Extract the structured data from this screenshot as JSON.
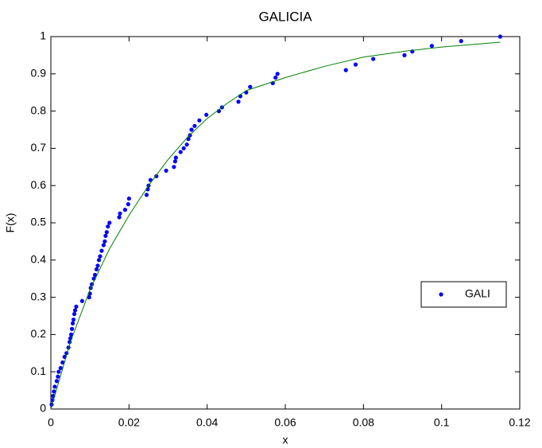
{
  "chart_data": {
    "type": "scatter",
    "title": "GALICIA",
    "x_label": "x",
    "y_label": "F(x)",
    "xlim": [
      0,
      0.12
    ],
    "ylim": [
      0,
      1
    ],
    "xticks": [
      0,
      0.02,
      0.04,
      0.06,
      0.08,
      0.1,
      0.12
    ],
    "yticks": [
      0,
      0.1,
      0.2,
      0.3,
      0.4,
      0.5,
      0.6,
      0.7,
      0.8,
      0.9,
      1
    ],
    "grid": false,
    "legend": "right",
    "series": [
      {
        "name": "GALI",
        "color": "#0000ff",
        "style": "markers",
        "x": [
          0.0002,
          0.0004,
          0.0006,
          0.0008,
          0.001,
          0.0015,
          0.0018,
          0.002,
          0.0025,
          0.003,
          0.0035,
          0.004,
          0.0045,
          0.0048,
          0.005,
          0.0052,
          0.0054,
          0.0056,
          0.0058,
          0.006,
          0.0062,
          0.0065,
          0.008,
          0.0098,
          0.01,
          0.0102,
          0.0105,
          0.011,
          0.0113,
          0.0117,
          0.012,
          0.0123,
          0.0126,
          0.013,
          0.0135,
          0.0138,
          0.014,
          0.0143,
          0.0146,
          0.015,
          0.0175,
          0.0177,
          0.019,
          0.0198,
          0.02,
          0.0245,
          0.0248,
          0.025,
          0.0255,
          0.027,
          0.0295,
          0.0315,
          0.0318,
          0.032,
          0.0332,
          0.034,
          0.0348,
          0.0352,
          0.0356,
          0.036,
          0.0368,
          0.038,
          0.0398,
          0.043,
          0.0438,
          0.048,
          0.0485,
          0.05,
          0.051,
          0.0568,
          0.0575,
          0.058,
          0.0755,
          0.078,
          0.0825,
          0.0905,
          0.0925,
          0.0975,
          0.105,
          0.115
        ],
        "values": [
          0.012,
          0.024,
          0.035,
          0.047,
          0.06,
          0.075,
          0.087,
          0.1,
          0.11,
          0.125,
          0.14,
          0.15,
          0.165,
          0.18,
          0.19,
          0.2,
          0.215,
          0.23,
          0.24,
          0.255,
          0.265,
          0.275,
          0.29,
          0.3,
          0.31,
          0.325,
          0.335,
          0.35,
          0.36,
          0.375,
          0.385,
          0.4,
          0.41,
          0.425,
          0.44,
          0.45,
          0.465,
          0.475,
          0.49,
          0.5,
          0.515,
          0.525,
          0.535,
          0.55,
          0.565,
          0.575,
          0.59,
          0.6,
          0.615,
          0.625,
          0.64,
          0.65,
          0.665,
          0.675,
          0.69,
          0.7,
          0.71,
          0.725,
          0.735,
          0.75,
          0.76,
          0.775,
          0.79,
          0.8,
          0.81,
          0.825,
          0.84,
          0.85,
          0.865,
          0.875,
          0.89,
          0.9,
          0.91,
          0.925,
          0.94,
          0.95,
          0.96,
          0.975,
          0.988,
          1
        ]
      },
      {
        "color": "#008000",
        "style": "line",
        "x": [
          0,
          0.005,
          0.01,
          0.015,
          0.02,
          0.025,
          0.03,
          0.035,
          0.04,
          0.045,
          0.05,
          0.06,
          0.07,
          0.08,
          0.09,
          0.1,
          0.115
        ],
        "values": [
          0,
          0.18,
          0.32,
          0.43,
          0.52,
          0.6,
          0.67,
          0.73,
          0.78,
          0.82,
          0.855,
          0.89,
          0.92,
          0.945,
          0.96,
          0.972,
          0.985
        ]
      }
    ]
  }
}
